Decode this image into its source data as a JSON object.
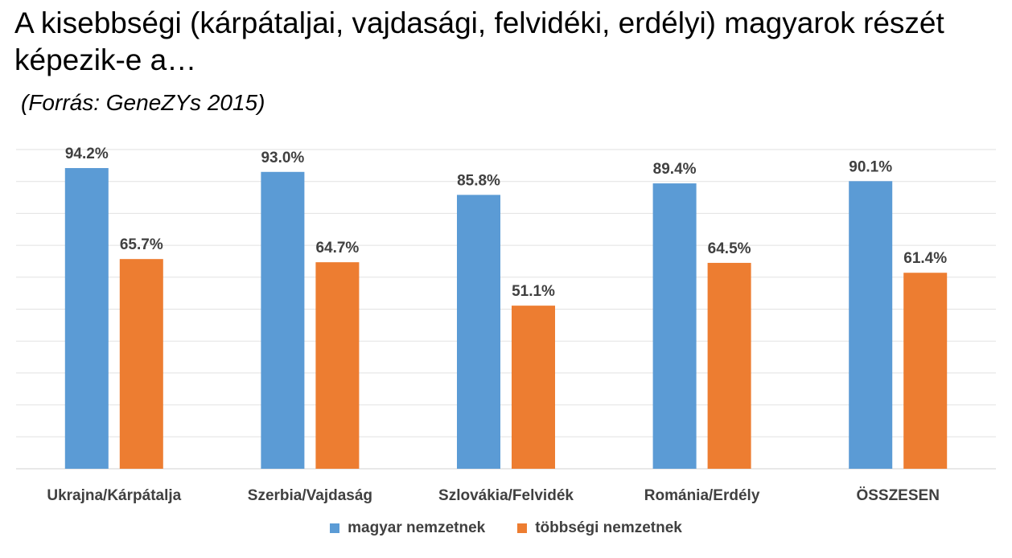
{
  "chart_data": {
    "type": "bar",
    "title": "A kisebbségi (kárpátaljai, vajdasági, felvidéki, erdélyi) magyarok részét képezik-e a…",
    "subtitle": "(Forrás: GeneZYs 2015)",
    "categories": [
      "Ukrajna/Kárpátalja",
      "Szerbia/Vajdaság",
      "Szlovákia/Felvidék",
      "Románia/Erdély",
      "ÖSSZESEN"
    ],
    "series": [
      {
        "name": "magyar nemzetnek",
        "color": "#5B9BD5",
        "values": [
          94.2,
          93.0,
          85.8,
          89.4,
          90.1
        ]
      },
      {
        "name": "többségi nemzetnek",
        "color": "#ED7D31",
        "values": [
          65.7,
          64.7,
          51.1,
          64.5,
          61.4
        ]
      }
    ],
    "ylim": [
      0,
      100
    ],
    "value_suffix": "%",
    "grid": true,
    "legend": "bottom"
  }
}
